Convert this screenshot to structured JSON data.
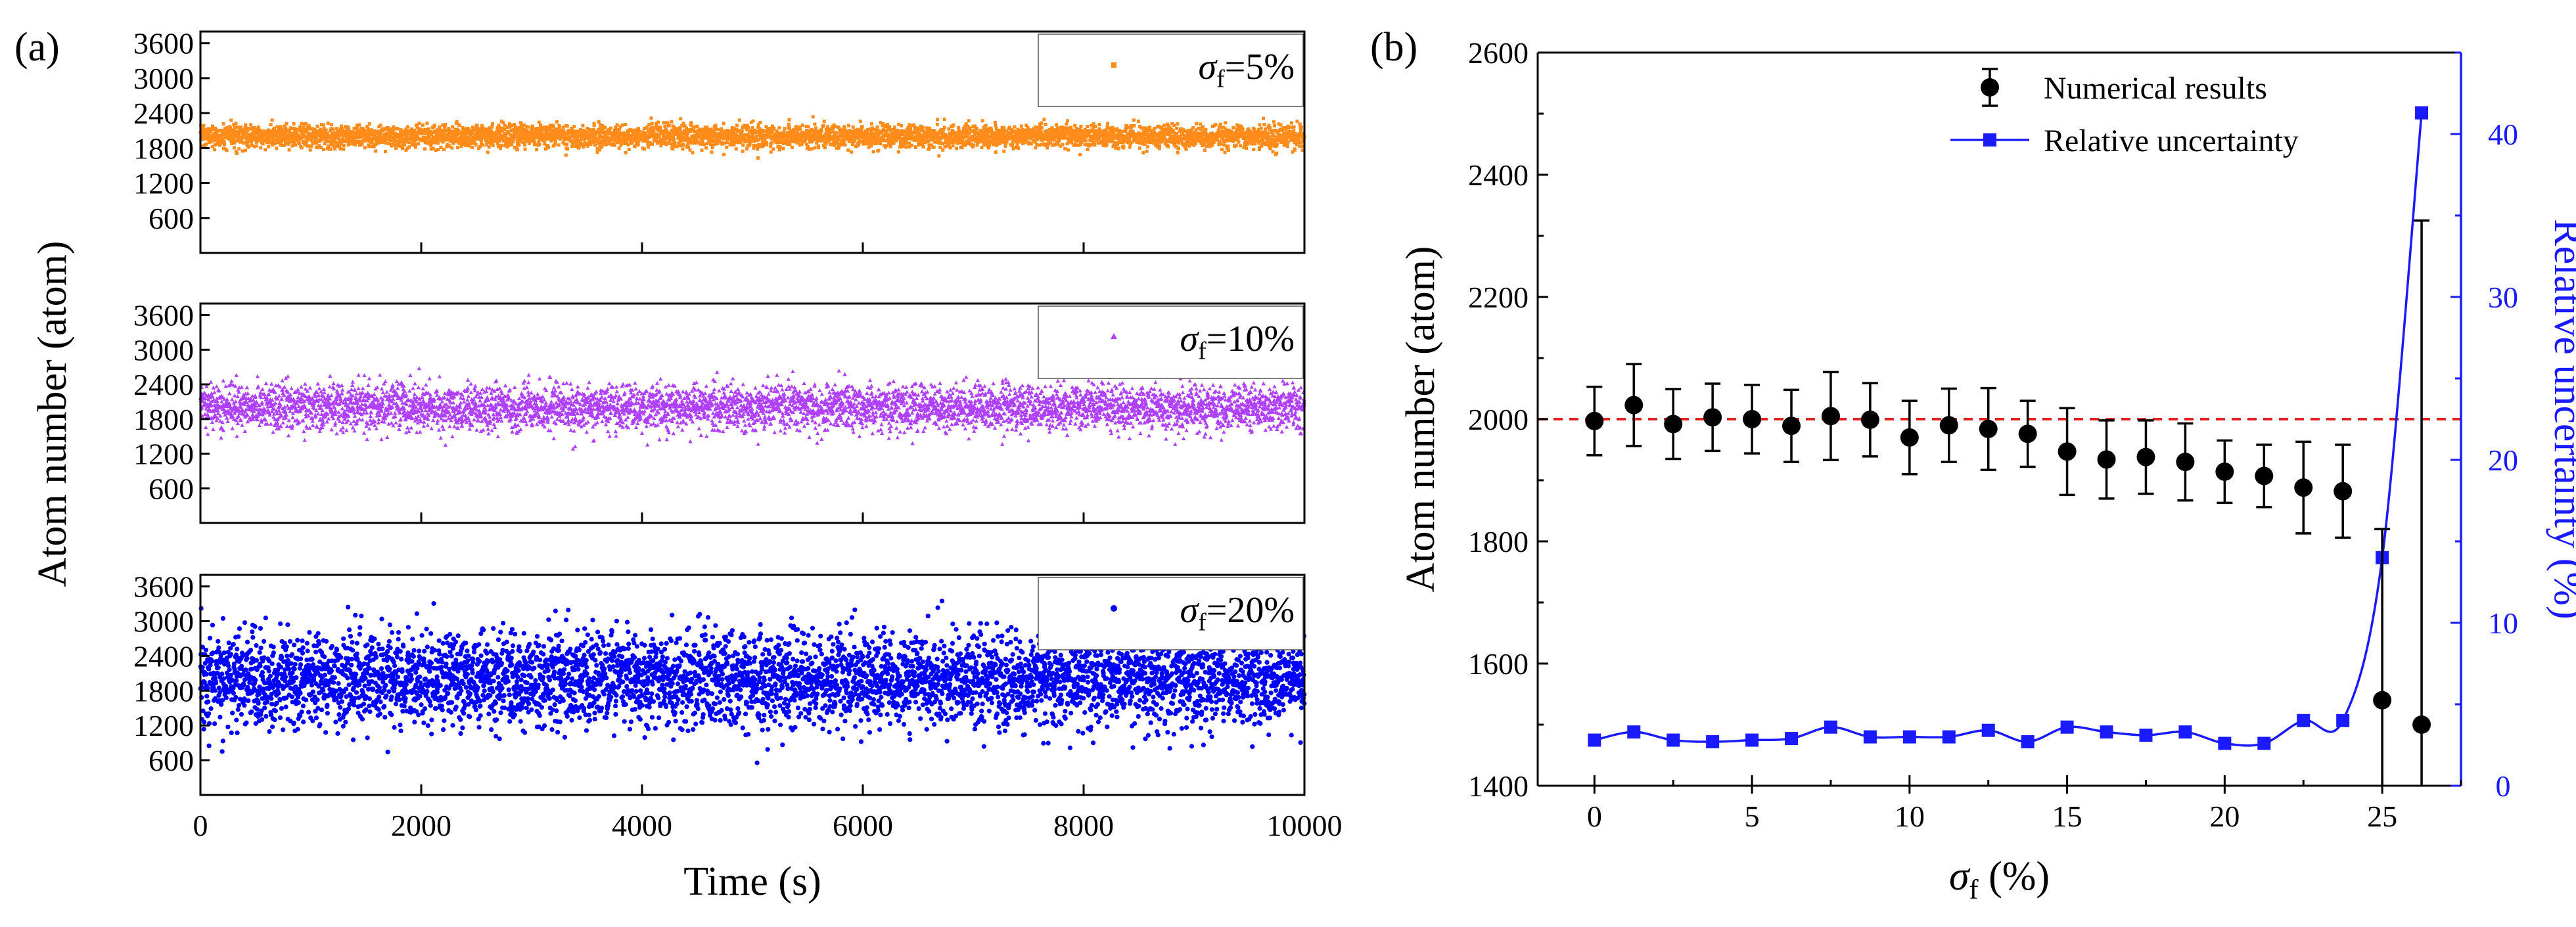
{
  "panel_labels": [
    "(a)",
    "(b)"
  ],
  "chart_data": [
    {
      "type": "scatter",
      "panel": "(a)",
      "title": "",
      "xlabel": "Time (s)",
      "ylabel": "Atom number (atom)",
      "xlim": [
        0,
        10000
      ],
      "xticks": [
        0,
        2000,
        4000,
        6000,
        8000,
        10000
      ],
      "xtick_labels": [
        "0",
        "2000",
        "4000",
        "6000",
        "8000",
        "10000"
      ],
      "ylim": [
        0,
        3800
      ],
      "yticks": [
        600,
        1200,
        1800,
        2400,
        3000,
        3600
      ],
      "ytick_labels": [
        "600",
        "1200",
        "1800",
        "2400",
        "3000",
        "3600"
      ],
      "grid": false,
      "subplots": [
        {
          "name": "σf=5%",
          "legend_symbol": "σ",
          "legend_sub": "f",
          "legend_rest": "=5%",
          "color": "#ff8c1a",
          "marker": "square",
          "mean": 2000,
          "std": 100,
          "points": 5000
        },
        {
          "name": "σf=10%",
          "legend_symbol": "σ",
          "legend_sub": "f",
          "legend_rest": "=10%",
          "color": "#b040ff",
          "marker": "triangle",
          "mean": 2000,
          "std": 200,
          "points": 5000
        },
        {
          "name": "σf=20%",
          "legend_symbol": "σ",
          "legend_sub": "f",
          "legend_rest": "=20%",
          "color": "#0000ff",
          "marker": "circle",
          "mean": 2000,
          "std": 400,
          "points": 5000
        }
      ]
    },
    {
      "type": "scatter",
      "panel": "(b)",
      "title": "",
      "xlabel_symbol": "σ",
      "xlabel_sub": "f",
      "xlabel_rest": " (%)",
      "ylabel": "Atom number (atom)",
      "y2label": "Relative uncertainty (%)",
      "xlim": [
        -1.8,
        27.5
      ],
      "xticks": [
        0,
        5,
        10,
        15,
        20,
        25
      ],
      "xtick_labels": [
        "0",
        "5",
        "10",
        "15",
        "20",
        "25"
      ],
      "ylim": [
        1400,
        2600
      ],
      "yticks": [
        1400,
        1600,
        1800,
        2000,
        2200,
        2400,
        2600
      ],
      "ytick_labels": [
        "1400",
        "1600",
        "1800",
        "2000",
        "2200",
        "2400",
        "2600"
      ],
      "y2lim": [
        0,
        45
      ],
      "y2ticks": [
        0,
        10,
        20,
        30,
        40
      ],
      "y2tick_labels": [
        "0",
        "10",
        "20",
        "30",
        "40"
      ],
      "reference_line": {
        "y": 2000,
        "color": "#e32020",
        "style": "dashed"
      },
      "x": [
        0,
        1.25,
        2.5,
        3.75,
        5,
        6.25,
        7.5,
        8.75,
        10,
        11.25,
        12.5,
        13.75,
        15,
        16.25,
        17.5,
        18.75,
        20,
        21.25,
        22.5,
        23.75,
        25,
        26.25
      ],
      "series": [
        {
          "name": "Numerical results",
          "color": "#000000",
          "axis": "left",
          "values": [
            1997,
            2023,
            1992,
            2003,
            2000,
            1989,
            2005,
            1999,
            1970,
            1990,
            1984,
            1976,
            1947,
            1934,
            1938,
            1930,
            1914,
            1907,
            1888,
            1882,
            1540,
            1500
          ],
          "errors": [
            56,
            67,
            57,
            55,
            56,
            59,
            72,
            60,
            60,
            60,
            67,
            54,
            71,
            64,
            60,
            63,
            51,
            51,
            75,
            76,
            280,
            825
          ]
        },
        {
          "name": "Relative uncertainty",
          "color": "#1a1aff",
          "axis": "right",
          "values": [
            2.8,
            3.3,
            2.8,
            2.7,
            2.8,
            2.9,
            3.6,
            3.0,
            3.0,
            3.0,
            3.4,
            2.7,
            3.6,
            3.3,
            3.1,
            3.3,
            2.6,
            2.6,
            4.0,
            4.0,
            14.0,
            41.3
          ]
        }
      ],
      "legend": {
        "placement": "top-right",
        "entries": [
          "Numerical results",
          "Relative uncertainty"
        ]
      }
    }
  ]
}
